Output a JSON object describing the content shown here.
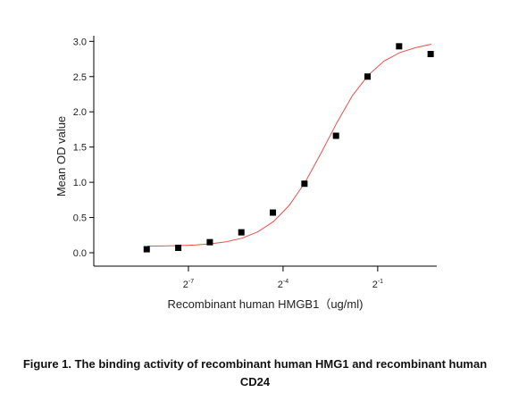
{
  "chart_data": {
    "type": "scatter",
    "xlabel": "Recombinant human HMGB1（ug/ml)",
    "ylabel": "Mean OD value",
    "xscale": "log2",
    "x": [
      0.003125,
      0.00625,
      0.0125,
      0.025,
      0.05,
      0.1,
      0.2,
      0.4,
      0.8,
      1.6
    ],
    "values": [
      0.05,
      0.07,
      0.15,
      0.29,
      0.57,
      0.98,
      1.66,
      2.5,
      2.93,
      2.82
    ],
    "color": "#000000",
    "curve": {
      "color": "#e8504a",
      "x": [
        0.00317,
        0.00449,
        0.00635,
        0.00897,
        0.0127,
        0.0179,
        0.0254,
        0.0359,
        0.0508,
        0.0718,
        0.1015,
        0.1436,
        0.203,
        0.287,
        0.406,
        0.574,
        0.812,
        1.149,
        1.625
      ],
      "values": [
        0.093,
        0.096,
        0.101,
        0.11,
        0.127,
        0.156,
        0.207,
        0.297,
        0.444,
        0.675,
        1.0,
        1.41,
        1.84,
        2.23,
        2.52,
        2.72,
        2.84,
        2.91,
        2.96
      ]
    },
    "xlim": [
      0.0009765625,
      1.83
    ],
    "ylim": [
      -0.19,
      3.08
    ],
    "xticks": [
      {
        "value": 0.0078125,
        "label": "2",
        "exponent": "-7"
      },
      {
        "value": 0.0625,
        "label": "2",
        "exponent": "-4"
      },
      {
        "value": 0.5,
        "label": "2",
        "exponent": "-1"
      }
    ],
    "yticks": [
      {
        "value": 0,
        "label": "0.0"
      },
      {
        "value": 0.5,
        "label": "0.5"
      },
      {
        "value": 1,
        "label": "1.0"
      },
      {
        "value": 1.5,
        "label": "1.5"
      },
      {
        "value": 2,
        "label": "2.0"
      },
      {
        "value": 2.5,
        "label": "2.5"
      },
      {
        "value": 3,
        "label": "3.0"
      }
    ]
  },
  "caption": "Figure 1. The binding activity of recombinant human HMG1 and recombinant human CD24"
}
